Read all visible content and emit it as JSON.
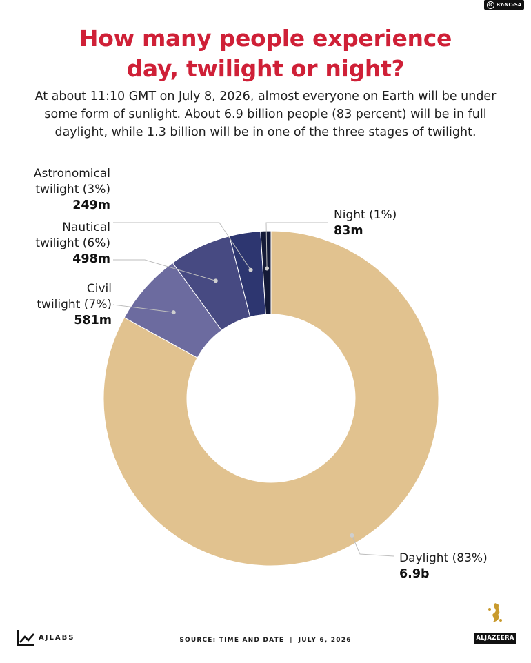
{
  "header": {
    "title_line1": "How many people experience",
    "title_line2": "day, twilight or night?",
    "subtitle_line1": "At about 11:10 GMT on July 8, 2026, almost everyone on Earth will be under",
    "subtitle_line2": "some form of sunlight. About 6.9 billion people (83 percent) will be in full",
    "subtitle_line3": "daylight, while 1.3 billion will be in one of the three stages of twilight."
  },
  "license": "BY-NC-SA",
  "chart_data": {
    "type": "pie",
    "variant": "donut",
    "unit": "people",
    "slices": [
      {
        "name": "Daylight",
        "percent": 83,
        "value_label": "6.9b",
        "value": 6900000000,
        "color": "#e1c28f"
      },
      {
        "name": "Civil twilight",
        "percent": 7,
        "value_label": "581m",
        "value": 581000000,
        "color": "#6c6b9f"
      },
      {
        "name": "Nautical twilight",
        "percent": 6,
        "value_label": "498m",
        "value": 498000000,
        "color": "#474a82"
      },
      {
        "name": "Astronomical twilight",
        "percent": 3,
        "value_label": "249m",
        "value": 249000000,
        "color": "#2d3670"
      },
      {
        "name": "Night",
        "percent": 1,
        "value_label": "83m",
        "value": 83000000,
        "color": "#141a37"
      }
    ],
    "labels": [
      {
        "lines": [
          "Daylight (83%)"
        ],
        "value": "6.9b"
      },
      {
        "lines": [
          "Civil",
          "twilight (7%)"
        ],
        "value": "581m"
      },
      {
        "lines": [
          "Nautical",
          "twilight (6%)"
        ],
        "value": "498m"
      },
      {
        "lines": [
          "Astronomical",
          "twilight (3%)"
        ],
        "value": "249m"
      },
      {
        "lines": [
          "Night (1%)"
        ],
        "value": "83m"
      }
    ]
  },
  "footer": {
    "brand": "AJLABS",
    "source": "SOURCE:  TIME AND DATE",
    "date": "JULY 6, 2026",
    "publisher": "ALJAZEERA"
  }
}
